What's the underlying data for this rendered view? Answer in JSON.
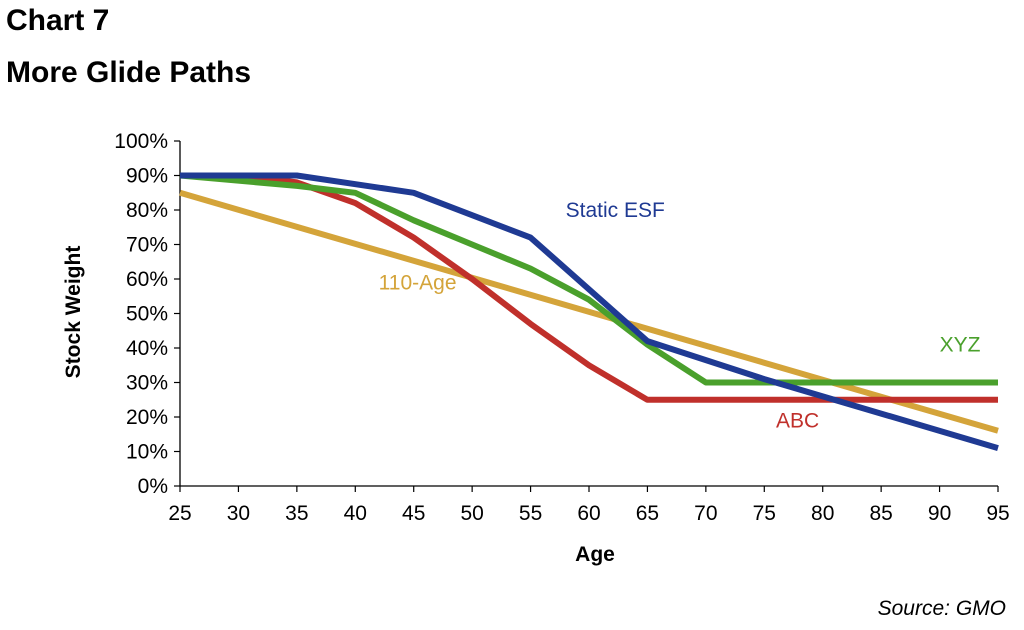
{
  "chart_data": {
    "type": "line",
    "title": "Chart 7",
    "subtitle": "More Glide Paths",
    "xlabel": "Age",
    "ylabel": "Stock Weight",
    "source": "Source: GMO",
    "xlim": [
      25,
      95
    ],
    "ylim": [
      0,
      100
    ],
    "x_ticks": [
      25,
      30,
      35,
      40,
      45,
      50,
      55,
      60,
      65,
      70,
      75,
      80,
      85,
      90,
      95
    ],
    "y_ticks": [
      0,
      10,
      20,
      30,
      40,
      50,
      60,
      70,
      80,
      90,
      100
    ],
    "y_tick_labels": [
      "0%",
      "10%",
      "20%",
      "30%",
      "40%",
      "50%",
      "60%",
      "70%",
      "80%",
      "90%",
      "100%"
    ],
    "grid": false,
    "legend": "inline labels",
    "series": [
      {
        "name": "Static ESF",
        "color": "#1f3a93",
        "label_at": [
          58,
          78
        ],
        "x": [
          25,
          35,
          45,
          55,
          65,
          75,
          85,
          95
        ],
        "y": [
          90,
          90,
          85,
          72,
          42,
          31,
          21,
          11
        ]
      },
      {
        "name": "XYZ",
        "color": "#4aa02c",
        "label_at": [
          90,
          39
        ],
        "x": [
          25,
          35,
          40,
          45,
          50,
          55,
          60,
          65,
          70,
          75,
          80,
          85,
          90,
          95
        ],
        "y": [
          90,
          87,
          85,
          77,
          70,
          63,
          54,
          41,
          30,
          30,
          30,
          30,
          30,
          30
        ]
      },
      {
        "name": "ABC",
        "color": "#c0302b",
        "label_at": [
          76,
          17
        ],
        "x": [
          25,
          30,
          35,
          40,
          45,
          50,
          55,
          60,
          65,
          70,
          75,
          80,
          85,
          90,
          95
        ],
        "y": [
          90,
          90,
          88,
          82,
          72,
          60,
          47,
          35,
          25,
          25,
          25,
          25,
          25,
          25,
          25
        ]
      },
      {
        "name": "110-Age",
        "color": "#d4a43a",
        "label_at": [
          42,
          57
        ],
        "x": [
          25,
          95
        ],
        "y": [
          85,
          16
        ]
      }
    ]
  }
}
